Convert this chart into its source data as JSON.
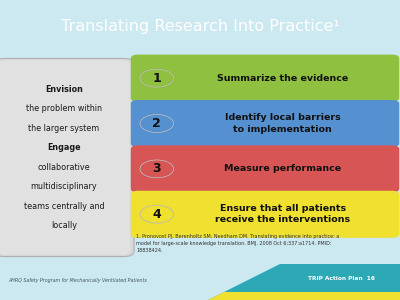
{
  "title": "Translating Research Into Practice¹",
  "title_color": "#ffffff",
  "title_bg": "#2da8b5",
  "bg_color": "#cce8f0",
  "left_box_text_lines": [
    {
      "text": "Envision",
      "bold": true
    },
    {
      "text": "the problem within",
      "bold": false
    },
    {
      "text": "the larger system",
      "bold": false
    },
    {
      "text": "Engage",
      "bold": true
    },
    {
      "text": "collaborative",
      "bold": false
    },
    {
      "text": "multidisciplinary",
      "bold": false
    },
    {
      "text": "teams centrally and",
      "bold": false
    },
    {
      "text": "locally",
      "bold": false
    }
  ],
  "steps": [
    {
      "num": "1",
      "text": "Summarize the evidence",
      "bar_color": "#90c040",
      "circle_color": "#b0d060",
      "text_color": "#000000",
      "text_lines": 1
    },
    {
      "num": "2",
      "text": "Identify local barriers\nto implementation",
      "bar_color": "#5590d0",
      "circle_color": "#7ab0e0",
      "text_color": "#000000",
      "text_lines": 2
    },
    {
      "num": "3",
      "text": "Measure performance",
      "bar_color": "#d85555",
      "circle_color": "#e87575",
      "text_color": "#000000",
      "text_lines": 1
    },
    {
      "num": "4",
      "text": "Ensure that all patients\nreceive the interventions",
      "bar_color": "#f0e030",
      "circle_color": "#f8f060",
      "text_color": "#000000",
      "text_lines": 2
    }
  ],
  "footer_left": "AHRQ Safety Program for Mechanically Ventilated Patients",
  "footer_right": "TRIP Action Plan  16",
  "footnote": "1. Pronovost PJ, Berenholtz SM, Needham DM. Translating evidence into practice: a\nmodel for large-scale knowledge translation. BMJ. 2008 Oct 6;337:a1714. PMID:\n18838424.",
  "footer_bar_color": "#2da8b5",
  "footer_yellow": "#f0e030"
}
